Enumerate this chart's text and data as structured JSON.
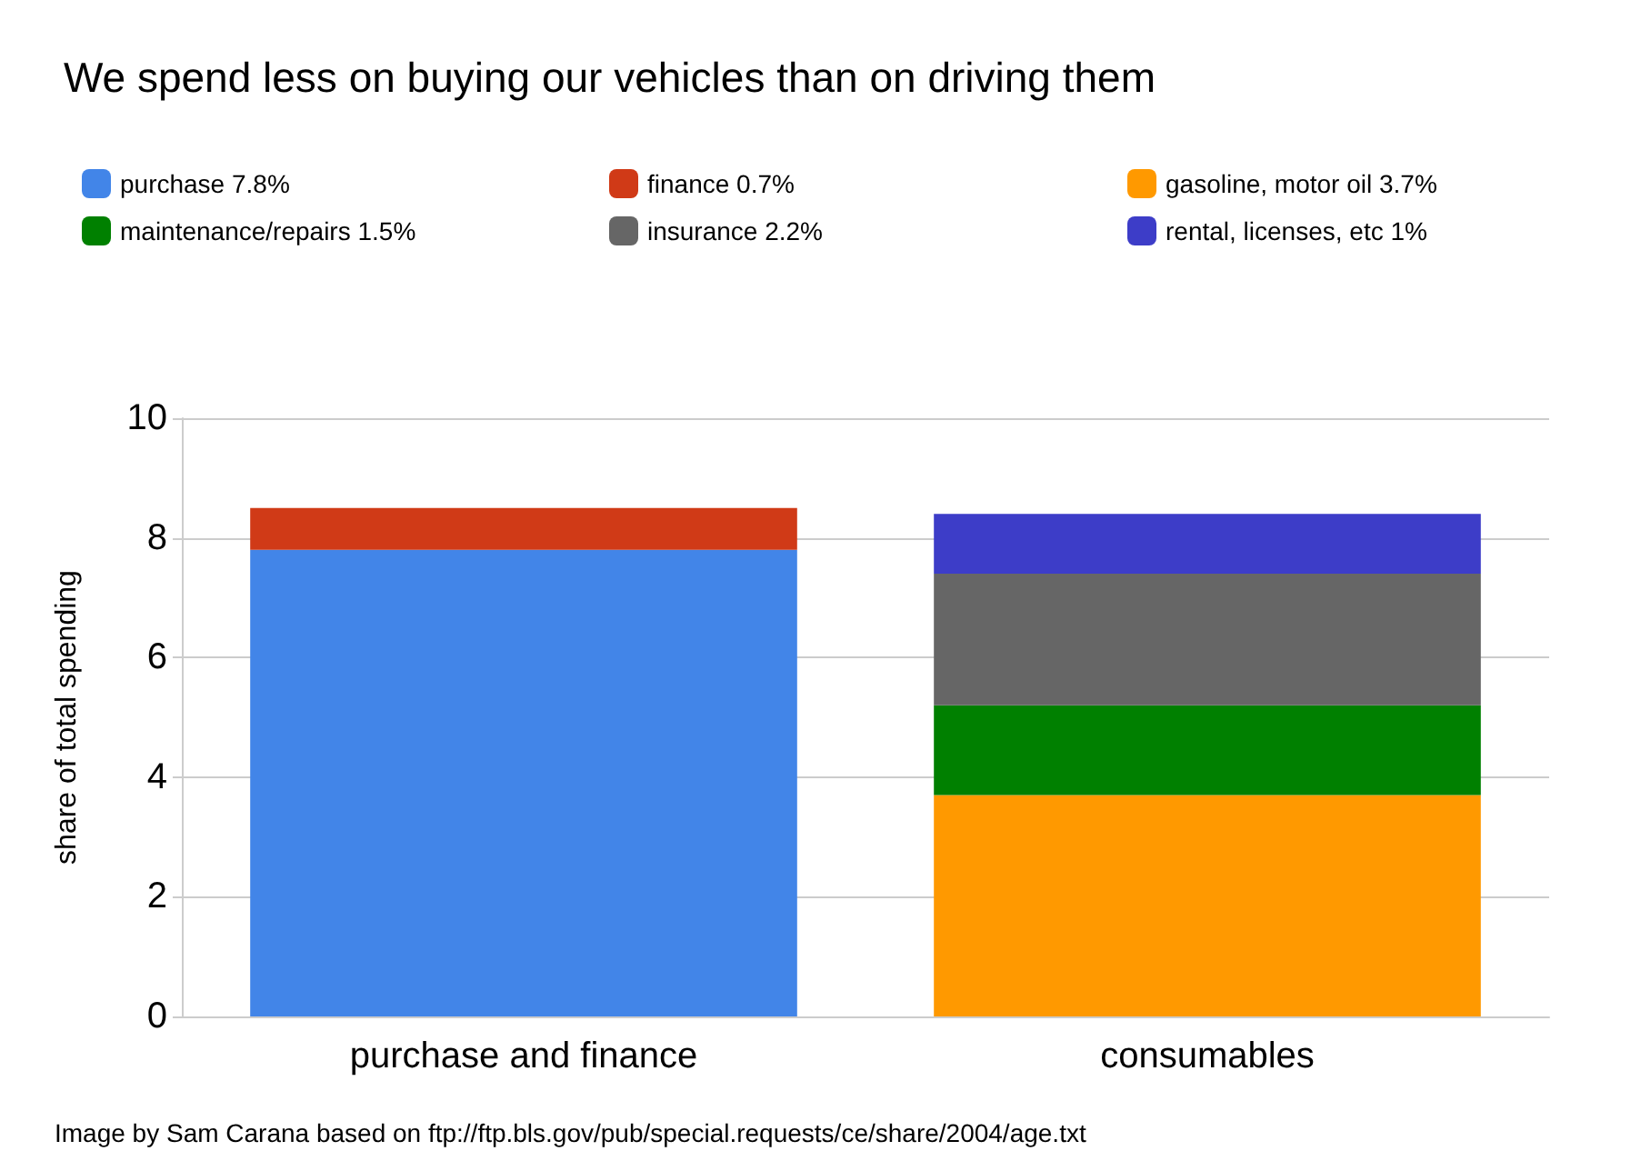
{
  "chart_data": {
    "type": "bar",
    "title": "We spend less on buying our vehicles than on driving them",
    "categories": [
      "purchase and finance",
      "consumables"
    ],
    "ylabel": "share of total spending",
    "stacked": true,
    "series": [
      {
        "name": "purchase 7.8%",
        "color": "#4285e8",
        "values": [
          7.8,
          null
        ]
      },
      {
        "name": "finance 0.7%",
        "color": "#d03a17",
        "values": [
          0.7,
          null
        ]
      },
      {
        "name": "gasoline, motor oil 3.7%",
        "color": "#ff9900",
        "values": [
          null,
          3.7
        ]
      },
      {
        "name": "maintenance/repairs 1.5%",
        "color": "#008000",
        "values": [
          null,
          1.5
        ]
      },
      {
        "name": "insurance 2.2%",
        "color": "#666666",
        "values": [
          null,
          2.2
        ]
      },
      {
        "name": "rental, licenses, etc 1%",
        "color": "#3d3dc8",
        "values": [
          null,
          1
        ]
      }
    ],
    "ylim": [
      0,
      10
    ],
    "yticks": [
      0,
      2,
      4,
      6,
      8,
      10
    ],
    "grid": "y",
    "legend": "top",
    "annotations": [
      "Image by Sam Carana based on ftp://ftp.bls.gov/pub/special.requests/ce/share/2004/age.txt"
    ]
  }
}
